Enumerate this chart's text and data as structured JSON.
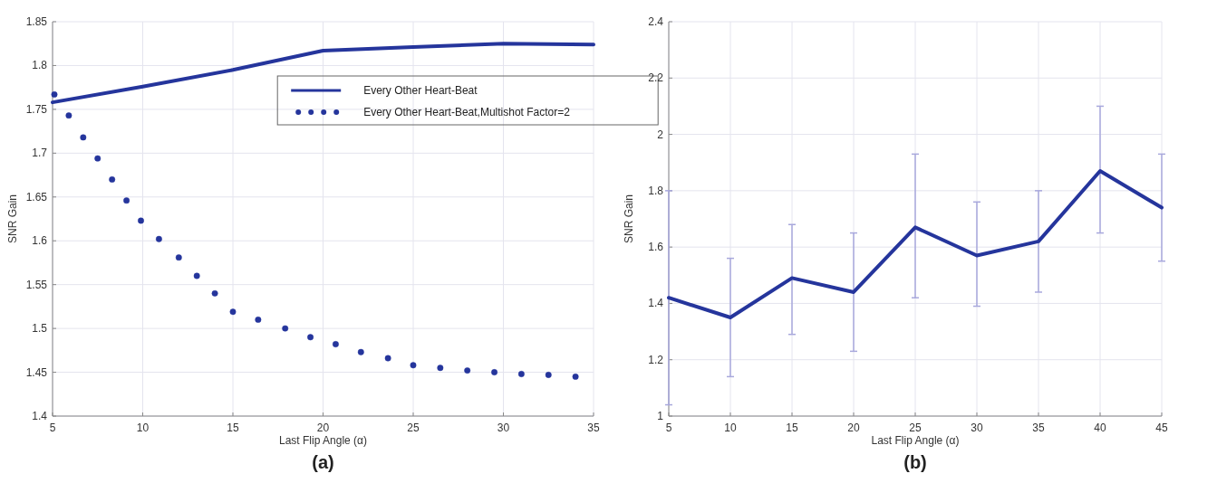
{
  "chart_data": [
    {
      "type": "line",
      "title": "(a)",
      "xlabel": "Last Flip Angle (α)",
      "ylabel": "SNR Gain",
      "xlim": [
        5,
        35
      ],
      "xticks": [
        5,
        10,
        15,
        20,
        25,
        30,
        35
      ],
      "ylim": [
        1.4,
        1.85
      ],
      "yticks": [
        1.4,
        1.45,
        1.5,
        1.55,
        1.6,
        1.65,
        1.7,
        1.75,
        1.8,
        1.85
      ],
      "grid": true,
      "legend": "top right",
      "series": [
        {
          "name": "Every Other Heart-Beat",
          "color": "#25359c",
          "x": [
            5,
            10,
            15,
            20,
            25,
            30,
            35
          ],
          "values": [
            1.758,
            1.776,
            1.795,
            1.817,
            1.821,
            1.825,
            1.824
          ]
        },
        {
          "name": "Every Other Heart-Beat,Multishot Factor=2",
          "type": "scatter",
          "marker": "circle",
          "color": "#25359c",
          "x": [
            5.1,
            5.9,
            6.7,
            7.5,
            8.3,
            9.1,
            9.9,
            10.9,
            12,
            13,
            14,
            15,
            16.4,
            17.9,
            19.3,
            20.7,
            22.1,
            23.6,
            25,
            26.5,
            28,
            29.5,
            31,
            32.5,
            34
          ],
          "values": [
            1.767,
            1.743,
            1.718,
            1.694,
            1.67,
            1.646,
            1.623,
            1.602,
            1.581,
            1.56,
            1.54,
            1.519,
            1.51,
            1.5,
            1.49,
            1.482,
            1.473,
            1.466,
            1.458,
            1.455,
            1.452,
            1.45,
            1.448,
            1.447,
            1.445
          ]
        }
      ]
    },
    {
      "type": "line",
      "title": "(b)",
      "xlabel": "Last Flip Angle (α)",
      "ylabel": "SNR Gain",
      "xlim": [
        5,
        45
      ],
      "xticks": [
        5,
        10,
        15,
        20,
        25,
        30,
        35,
        40,
        45
      ],
      "ylim": [
        1,
        2.4
      ],
      "yticks": [
        1,
        1.2,
        1.4,
        1.6,
        1.8,
        2,
        2.2,
        2.4
      ],
      "grid": true,
      "series": [
        {
          "color": "#25359c",
          "x": [
            5,
            10,
            15,
            20,
            25,
            30,
            35,
            40,
            45
          ],
          "values": [
            1.42,
            1.35,
            1.49,
            1.44,
            1.67,
            1.57,
            1.62,
            1.87,
            1.74
          ],
          "errors": [
            [
              1.04,
              1.8
            ],
            [
              1.14,
              1.56
            ],
            [
              1.29,
              1.68
            ],
            [
              1.23,
              1.65
            ],
            [
              1.42,
              1.93
            ],
            [
              1.39,
              1.76
            ],
            [
              1.44,
              1.8
            ],
            [
              1.65,
              2.1
            ],
            [
              1.55,
              1.93
            ]
          ]
        }
      ]
    }
  ]
}
